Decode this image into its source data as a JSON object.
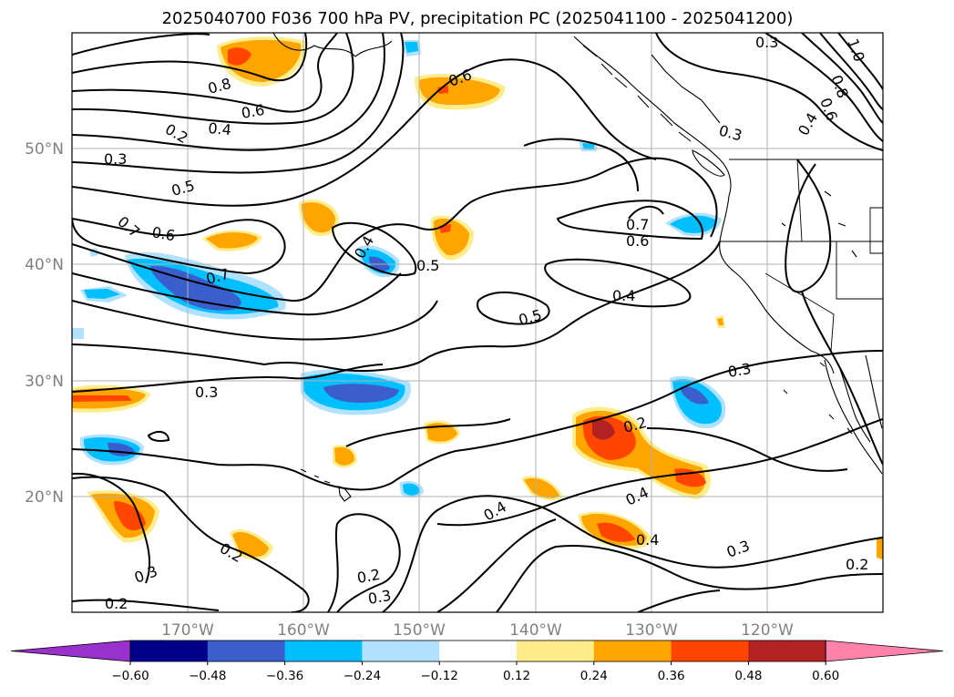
{
  "title": "2025040700 F036 700 hPa PV, precipitation PC (2025041100 - 2025041200)",
  "lat_labels": [
    "50°N",
    "40°N",
    "30°N",
    "20°N"
  ],
  "lon_labels": [
    "170°W",
    "160°W",
    "150°W",
    "140°W",
    "130°W",
    "120°W"
  ],
  "colorbar": {
    "ticks": [
      "−0.60",
      "−0.48",
      "−0.36",
      "−0.24",
      "−0.12",
      "0.12",
      "0.24",
      "0.36",
      "0.48",
      "0.60"
    ],
    "colors": [
      "#9932cc",
      "#00008b",
      "#3a5fcd",
      "#00bfff",
      "#b0e2ff",
      "#ffffff",
      "#ffec8b",
      "#ffa500",
      "#ff4500",
      "#b22222",
      "#ff82ab"
    ]
  },
  "contour_labels": [
    "0.3",
    "0.8",
    "0.6",
    "0.4",
    "0.2",
    "0.3",
    "0.5",
    "0.7",
    "0.6",
    "0.7",
    "0.4",
    "0.5",
    "0.7",
    "0.6",
    "0.4",
    "0.5",
    "0.3",
    "0.3",
    "0.2",
    "0.4",
    "0.4",
    "0.4",
    "0.2",
    "0.3",
    "0.2",
    "0.2",
    "0.3",
    "0.3",
    "0.2",
    "0.6",
    "0.3",
    "0.4",
    "1.0",
    "0.8",
    "0.6"
  ]
}
